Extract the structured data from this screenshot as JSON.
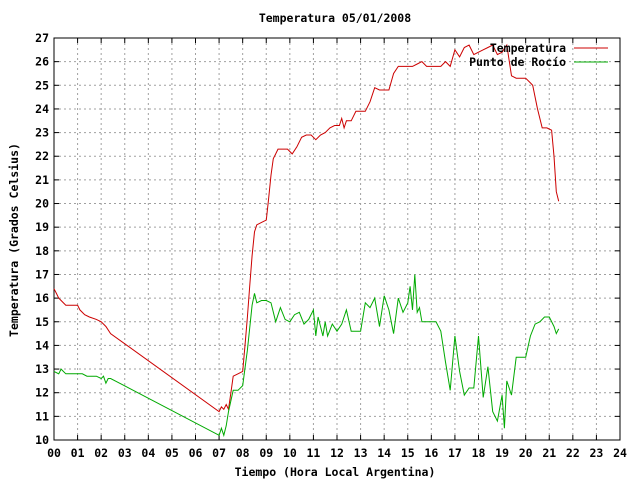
{
  "chart_data": {
    "type": "line",
    "title": "Temperatura 05/01/2008",
    "xlabel": "Tiempo (Hora Local Argentina)",
    "ylabel": "Temperatura (Grados Celsius)",
    "xlim": [
      0,
      24
    ],
    "ylim": [
      10,
      27
    ],
    "x_ticks": [
      0,
      1,
      2,
      3,
      4,
      5,
      6,
      7,
      8,
      9,
      10,
      11,
      12,
      13,
      14,
      15,
      16,
      17,
      18,
      19,
      20,
      21,
      22,
      23,
      24
    ],
    "x_tick_labels": [
      "00",
      "01",
      "02",
      "03",
      "04",
      "05",
      "06",
      "07",
      "08",
      "09",
      "10",
      "11",
      "12",
      "13",
      "14",
      "15",
      "16",
      "17",
      "18",
      "19",
      "20",
      "21",
      "22",
      "23",
      "24"
    ],
    "y_ticks": [
      10,
      11,
      12,
      13,
      14,
      15,
      16,
      17,
      18,
      19,
      20,
      21,
      22,
      23,
      24,
      25,
      26,
      27
    ],
    "y_tick_labels": [
      "10",
      "11",
      "12",
      "13",
      "14",
      "15",
      "16",
      "17",
      "18",
      "19",
      "20",
      "21",
      "22",
      "23",
      "24",
      "25",
      "26",
      "27"
    ],
    "grid": true,
    "legend_position": "top-right",
    "series": [
      {
        "name": "Temperatura",
        "color": "#cc0000",
        "x": [
          0.0,
          0.1,
          0.2,
          0.3,
          0.5,
          0.8,
          1.0,
          1.1,
          1.3,
          1.5,
          1.8,
          2.0,
          2.2,
          2.4,
          7.0,
          7.1,
          7.2,
          7.3,
          7.4,
          7.5,
          7.6,
          7.8,
          8.0,
          8.1,
          8.2,
          8.3,
          8.4,
          8.5,
          8.6,
          8.8,
          9.0,
          9.1,
          9.2,
          9.3,
          9.4,
          9.5,
          9.7,
          9.9,
          10.1,
          10.3,
          10.5,
          10.7,
          10.9,
          11.1,
          11.3,
          11.5,
          11.7,
          11.9,
          12.1,
          12.2,
          12.3,
          12.4,
          12.6,
          12.8,
          13.0,
          13.2,
          13.4,
          13.6,
          13.8,
          14.0,
          14.2,
          14.4,
          14.6,
          14.8,
          15.0,
          15.2,
          15.4,
          15.6,
          15.8,
          16.0,
          16.2,
          16.4,
          16.6,
          16.8,
          17.0,
          17.2,
          17.4,
          17.6,
          17.8,
          18.0,
          18.2,
          18.4,
          18.6,
          18.8,
          19.0,
          19.2,
          19.4,
          19.6,
          19.8,
          20.0,
          20.2,
          20.3,
          20.4,
          20.5,
          20.7,
          20.9,
          21.1,
          21.2,
          21.3,
          21.4
        ],
        "values": [
          16.4,
          16.2,
          16.0,
          15.9,
          15.7,
          15.7,
          15.7,
          15.5,
          15.3,
          15.2,
          15.1,
          15.0,
          14.8,
          14.5,
          11.2,
          11.4,
          11.3,
          11.5,
          11.3,
          12.0,
          12.7,
          12.8,
          12.9,
          14.0,
          15.2,
          16.5,
          17.8,
          18.8,
          19.1,
          19.2,
          19.3,
          20.2,
          21.2,
          21.9,
          22.1,
          22.3,
          22.3,
          22.3,
          22.1,
          22.4,
          22.8,
          22.9,
          22.9,
          22.7,
          22.9,
          23.0,
          23.2,
          23.3,
          23.3,
          23.6,
          23.2,
          23.5,
          23.5,
          23.9,
          23.9,
          23.9,
          24.3,
          24.9,
          24.8,
          24.8,
          24.8,
          25.5,
          25.8,
          25.8,
          25.8,
          25.8,
          25.9,
          26.0,
          25.8,
          25.8,
          25.8,
          25.8,
          26.0,
          25.8,
          26.5,
          26.2,
          26.6,
          26.7,
          26.3,
          26.4,
          26.5,
          26.6,
          26.7,
          26.3,
          26.4,
          26.7,
          25.4,
          25.3,
          25.3,
          25.3,
          25.1,
          25.0,
          24.5,
          24.0,
          23.2,
          23.2,
          23.1,
          22.0,
          20.5,
          20.1
        ]
      },
      {
        "name": "Punto de Rocío",
        "color": "#00aa00",
        "x": [
          0.0,
          0.2,
          0.3,
          0.5,
          0.8,
          1.0,
          1.2,
          1.4,
          1.6,
          1.8,
          2.0,
          2.1,
          2.2,
          2.3,
          2.4,
          7.0,
          7.1,
          7.2,
          7.3,
          7.4,
          7.6,
          7.8,
          8.0,
          8.2,
          8.4,
          8.5,
          8.6,
          8.8,
          9.0,
          9.2,
          9.4,
          9.6,
          9.8,
          10.0,
          10.2,
          10.4,
          10.6,
          10.8,
          11.0,
          11.1,
          11.2,
          11.3,
          11.4,
          11.5,
          11.6,
          11.8,
          12.0,
          12.2,
          12.4,
          12.6,
          12.8,
          13.0,
          13.2,
          13.4,
          13.6,
          13.8,
          14.0,
          14.2,
          14.4,
          14.6,
          14.8,
          15.0,
          15.1,
          15.2,
          15.3,
          15.4,
          15.5,
          15.6,
          15.8,
          16.0,
          16.2,
          16.4,
          16.6,
          16.8,
          17.0,
          17.2,
          17.4,
          17.6,
          17.8,
          18.0,
          18.2,
          18.4,
          18.6,
          18.8,
          19.0,
          19.1,
          19.2,
          19.4,
          19.6,
          19.8,
          20.0,
          20.2,
          20.4,
          20.6,
          20.8,
          21.0,
          21.2,
          21.3,
          21.4
        ],
        "values": [
          12.9,
          12.8,
          13.0,
          12.8,
          12.8,
          12.8,
          12.8,
          12.7,
          12.7,
          12.7,
          12.6,
          12.7,
          12.4,
          12.6,
          12.6,
          10.2,
          10.5,
          10.2,
          10.6,
          11.2,
          12.1,
          12.1,
          12.3,
          13.8,
          15.7,
          16.2,
          15.8,
          15.9,
          15.9,
          15.8,
          15.0,
          15.6,
          15.1,
          15.0,
          15.3,
          15.4,
          14.9,
          15.1,
          15.5,
          14.4,
          15.2,
          14.8,
          14.4,
          15.0,
          14.4,
          14.9,
          14.6,
          14.9,
          15.5,
          14.6,
          14.6,
          14.6,
          15.8,
          15.6,
          16.0,
          14.8,
          16.1,
          15.5,
          14.5,
          16.0,
          15.4,
          15.8,
          16.5,
          15.5,
          17.0,
          15.4,
          15.6,
          15.0,
          15.0,
          15.0,
          15.0,
          14.6,
          13.3,
          12.1,
          14.4,
          12.9,
          11.9,
          12.2,
          12.2,
          14.4,
          11.8,
          13.1,
          11.2,
          10.8,
          11.9,
          10.5,
          12.5,
          11.9,
          13.5,
          13.5,
          13.5,
          14.4,
          14.9,
          15.0,
          15.2,
          15.2,
          14.8,
          14.5,
          14.7
        ]
      }
    ]
  }
}
